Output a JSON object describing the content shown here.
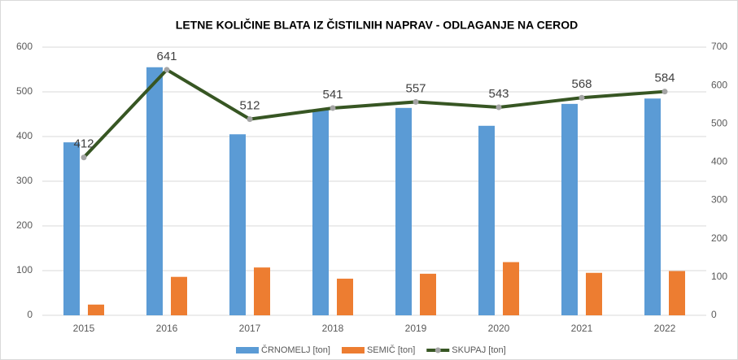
{
  "chart_data": {
    "type": "bar_line",
    "title": "LETNE KOLIČINE BLATA IZ ČISTILNIH NAPRAV - ODLAGANJE NA CEROD",
    "categories": [
      "2015",
      "2016",
      "2017",
      "2018",
      "2019",
      "2020",
      "2021",
      "2022"
    ],
    "series": [
      {
        "name": "ČRNOMELJ [ton]",
        "type": "bar",
        "color": "#5b9bd5",
        "values": [
          387,
          555,
          405,
          459,
          464,
          424,
          473,
          485
        ]
      },
      {
        "name": "SEMIČ [ton]",
        "type": "bar",
        "color": "#ed7d31",
        "values": [
          24,
          86,
          107,
          82,
          93,
          119,
          95,
          99
        ]
      },
      {
        "name": "SKUPAJ [ton]",
        "type": "line",
        "axis": "y2",
        "color": "#375623",
        "marker_color": "#a5a5a5",
        "values": [
          412,
          641,
          512,
          541,
          557,
          543,
          568,
          584
        ]
      }
    ],
    "ylim": [
      0,
      600
    ],
    "yticks": [
      0,
      100,
      200,
      300,
      400,
      500,
      600
    ],
    "y2lim": [
      0,
      700
    ],
    "y2ticks": [
      0,
      100,
      200,
      300,
      400,
      500,
      600,
      700
    ],
    "grid": true,
    "legend": "bottom"
  }
}
